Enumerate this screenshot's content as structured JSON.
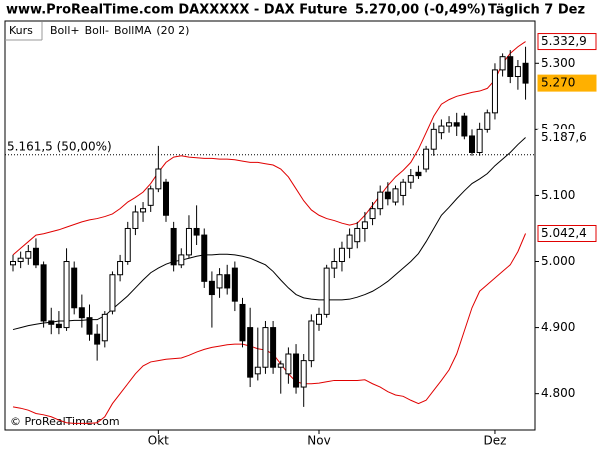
{
  "chart_data": {
    "type": "candlestick",
    "header": {
      "source": "www.ProRealTime.com DAXXXXX - DAX Future",
      "quote": "5.270,00 (-0,49%)",
      "period": "Täglich 7 Dez"
    },
    "legend": {
      "price": "Kurs",
      "params": "(20 2)"
    },
    "copyright": "© ProRealTime.com",
    "categories": [
      null,
      null,
      null,
      null,
      null,
      null,
      null,
      null,
      null,
      null,
      null,
      null,
      null,
      null,
      null,
      null,
      null,
      null,
      null,
      "Okt",
      null,
      null,
      null,
      null,
      null,
      null,
      null,
      null,
      null,
      null,
      null,
      null,
      null,
      null,
      null,
      null,
      null,
      null,
      null,
      null,
      "Nov",
      null,
      null,
      null,
      null,
      null,
      null,
      null,
      null,
      null,
      null,
      null,
      null,
      null,
      null,
      null,
      null,
      null,
      null,
      null,
      null,
      null,
      null,
      "Dez",
      null,
      null,
      null,
      null
    ],
    "open": [
      4995,
      5000,
      5005,
      5020,
      4995,
      4910,
      4905,
      4900,
      4990,
      4930,
      4915,
      4890,
      4880,
      4925,
      4980,
      5000,
      5050,
      5075,
      5085,
      5110,
      5120,
      5050,
      4995,
      5010,
      5050,
      5040,
      4970,
      4960,
      4980,
      4990,
      4935,
      4900,
      4830,
      4840,
      4900,
      4840,
      4830,
      4860,
      4810,
      4850,
      4905,
      4920,
      4990,
      5000,
      5020,
      5030,
      5050,
      5065,
      5080,
      5105,
      5090,
      5100,
      5120,
      5135,
      5140,
      5170,
      5195,
      5205,
      5210,
      5220,
      5190,
      5165,
      5200,
      5225,
      5290,
      5310,
      5280,
      5300
    ],
    "high": [
      5010,
      5015,
      5025,
      5035,
      5000,
      4930,
      4925,
      5020,
      5000,
      4950,
      4935,
      4905,
      4925,
      4985,
      5010,
      5060,
      5085,
      5090,
      5115,
      5175,
      5125,
      5060,
      5020,
      5070,
      5085,
      5050,
      4985,
      4990,
      4995,
      5000,
      4945,
      4930,
      4900,
      4910,
      4910,
      4850,
      4870,
      4875,
      4860,
      4920,
      4930,
      4995,
      5020,
      5030,
      5050,
      5060,
      5075,
      5090,
      5115,
      5120,
      5115,
      5125,
      5140,
      5145,
      5175,
      5210,
      5215,
      5220,
      5225,
      5225,
      5200,
      5210,
      5230,
      5300,
      5315,
      5320,
      5305,
      5325
    ],
    "low": [
      4985,
      4990,
      4995,
      4990,
      4900,
      4890,
      4890,
      4895,
      4920,
      4900,
      4880,
      4850,
      4870,
      4920,
      4970,
      4995,
      5040,
      5060,
      5075,
      5105,
      5060,
      4985,
      4990,
      5005,
      5025,
      4960,
      4900,
      4945,
      4950,
      4925,
      4870,
      4810,
      4820,
      4830,
      4830,
      4800,
      4815,
      4800,
      4780,
      4840,
      4895,
      4915,
      4975,
      4985,
      5005,
      5020,
      5030,
      5055,
      5070,
      5085,
      5085,
      5085,
      5110,
      5125,
      5135,
      5160,
      5185,
      5195,
      5190,
      5185,
      5160,
      5160,
      5195,
      5215,
      5280,
      5270,
      5260,
      5245
    ],
    "close": [
      5000,
      5005,
      5015,
      4995,
      4910,
      4905,
      4900,
      5000,
      4930,
      4915,
      4890,
      4875,
      4920,
      4980,
      5000,
      5050,
      5075,
      5080,
      5110,
      5140,
      5070,
      4995,
      5010,
      5050,
      5040,
      4970,
      4950,
      4980,
      4960,
      4940,
      4880,
      4825,
      4840,
      4900,
      4840,
      4845,
      4860,
      4810,
      4850,
      4910,
      4920,
      4990,
      5000,
      5020,
      5040,
      5050,
      5060,
      5080,
      5105,
      5095,
      5110,
      5120,
      5130,
      5130,
      5170,
      5200,
      5205,
      5210,
      5205,
      5190,
      5165,
      5200,
      5225,
      5290,
      5310,
      5280,
      5295,
      5270
    ],
    "close_label": "5.270",
    "up_color": "#ffffff",
    "down_color": "#000000",
    "series": [
      {
        "name": "Boll+",
        "color": "#e00000",
        "last_label": "5.332,9",
        "values": [
          5010,
          5020,
          5030,
          5040,
          5042,
          5045,
          5048,
          5052,
          5056,
          5060,
          5063,
          5065,
          5068,
          5072,
          5080,
          5090,
          5097,
          5105,
          5118,
          5135,
          5150,
          5158,
          5160,
          5158,
          5157,
          5156,
          5156,
          5155,
          5155,
          5154,
          5152,
          5150,
          5150,
          5148,
          5146,
          5140,
          5128,
          5110,
          5092,
          5078,
          5070,
          5065,
          5062,
          5058,
          5055,
          5058,
          5070,
          5085,
          5100,
          5115,
          5128,
          5138,
          5150,
          5170,
          5195,
          5220,
          5238,
          5245,
          5250,
          5253,
          5256,
          5258,
          5262,
          5275,
          5300,
          5315,
          5325,
          5332.9
        ]
      },
      {
        "name": "Boll-",
        "color": "#e00000",
        "last_label": "5.042,4",
        "values": [
          4780,
          4778,
          4775,
          4770,
          4768,
          4765,
          4760,
          4756,
          4755,
          4755,
          4755,
          4756,
          4765,
          4785,
          4800,
          4815,
          4830,
          4842,
          4848,
          4850,
          4852,
          4853,
          4854,
          4858,
          4863,
          4867,
          4870,
          4872,
          4874,
          4875,
          4875,
          4872,
          4868,
          4866,
          4860,
          4845,
          4830,
          4818,
          4815,
          4815,
          4816,
          4818,
          4820,
          4820,
          4820,
          4820,
          4821,
          4815,
          4810,
          4803,
          4798,
          4796,
          4790,
          4785,
          4790,
          4805,
          4820,
          4836,
          4860,
          4895,
          4930,
          4955,
          4965,
          4975,
          4985,
          4995,
          5015,
          5042.4
        ]
      },
      {
        "name": "BollMA",
        "color": "#000000",
        "last_label": "5.187,6",
        "values": [
          4897,
          4900,
          4903,
          4905,
          4907,
          4908,
          4910,
          4910,
          4911,
          4911,
          4912,
          4912,
          4918,
          4928,
          4938,
          4948,
          4960,
          4972,
          4983,
          4990,
          4996,
          5000,
          5002,
          5005,
          5008,
          5010,
          5010,
          5011,
          5011,
          5010,
          5008,
          5005,
          5000,
          4995,
          4985,
          4972,
          4960,
          4950,
          4945,
          4943,
          4942,
          4942,
          4942,
          4942,
          4943,
          4946,
          4950,
          4955,
          4962,
          4970,
          4980,
          4990,
          5000,
          5012,
          5030,
          5050,
          5070,
          5082,
          5095,
          5107,
          5118,
          5125,
          5133,
          5145,
          5155,
          5165,
          5177,
          5187.6
        ]
      }
    ],
    "reference_line": {
      "value": 5161.5,
      "label": "5.161,5 (50,00%)"
    },
    "ylim": [
      4745,
      5364
    ],
    "yticks": [
      {
        "value": 4800,
        "label": "4.800"
      },
      {
        "value": 4900,
        "label": "4.900"
      },
      {
        "value": 5000,
        "label": "5.000"
      },
      {
        "value": 5100,
        "label": "5.100"
      },
      {
        "value": 5200,
        "label": "5.200"
      },
      {
        "value": 5300,
        "label": "5.300"
      }
    ]
  }
}
